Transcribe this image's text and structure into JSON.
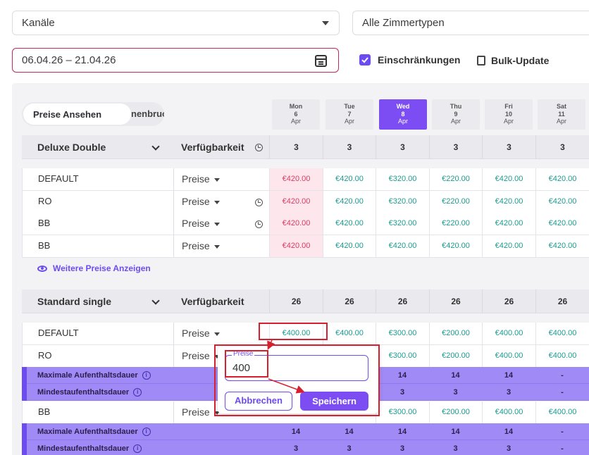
{
  "filters": {
    "channels_value": "Kanäle",
    "room_types_value": "Alle Zimmertypen",
    "date_range": "06.04.26 – 21.04.26",
    "restrictions_label": "Einschränkungen",
    "bulk_update_label": "Bulk-Update"
  },
  "view_toggle": {
    "active_label": "Preise Ansehen",
    "other_label_visible": "nenbruch"
  },
  "days": [
    {
      "name": "Mon",
      "num": "6",
      "month": "Apr",
      "active": false
    },
    {
      "name": "Tue",
      "num": "7",
      "month": "Apr",
      "active": false
    },
    {
      "name": "Wed",
      "num": "8",
      "month": "Apr",
      "active": true
    },
    {
      "name": "Thu",
      "num": "9",
      "month": "Apr",
      "active": false
    },
    {
      "name": "Fri",
      "num": "10",
      "month": "Apr",
      "active": false
    },
    {
      "name": "Sat",
      "num": "11",
      "month": "Apr",
      "active": false
    }
  ],
  "groups": [
    {
      "title": "Deluxe Double",
      "availability_label": "Verfügbarkeit",
      "availability": [
        "3",
        "3",
        "3",
        "3",
        "3",
        "3"
      ],
      "rows": [
        {
          "name": "DEFAULT",
          "selector": "Preise",
          "history": false,
          "prices": [
            "€420.00",
            "€420.00",
            "€320.00",
            "€220.00",
            "€420.00",
            "€420.00"
          ]
        },
        {
          "name": "RO",
          "selector": "Preise",
          "history": true,
          "prices": [
            "€420.00",
            "€420.00",
            "€320.00",
            "€220.00",
            "€420.00",
            "€420.00"
          ]
        },
        {
          "name": "BB",
          "selector": "Preise",
          "history": true,
          "prices": [
            "€420.00",
            "€420.00",
            "€320.00",
            "€220.00",
            "€420.00",
            "€420.00"
          ]
        },
        {
          "name": "BB",
          "selector": "Preise",
          "history": false,
          "prices": [
            "€420.00",
            "€420.00",
            "€420.00",
            "€420.00",
            "€420.00",
            "€420.00"
          ]
        }
      ],
      "more_link": "Weitere Preise Anzeigen"
    },
    {
      "title": "Standard single",
      "availability_label": "Verfügbarkeit",
      "availability": [
        "26",
        "26",
        "26",
        "26",
        "26",
        "26"
      ],
      "rows": [
        {
          "name": "DEFAULT",
          "selector": "Preise",
          "prices": [
            "€400.00",
            "€400.00",
            "€300.00",
            "€200.00",
            "€400.00",
            "€400.00"
          ]
        },
        {
          "name": "RO",
          "selector": "Preise",
          "prices": [
            "",
            "",
            "€300.00",
            "€200.00",
            "€400.00",
            "€400.00"
          ]
        },
        {
          "name": "BB",
          "selector": "Preise",
          "prices": [
            "",
            "",
            "€300.00",
            "€200.00",
            "€400.00",
            "€400.00"
          ]
        }
      ],
      "restrictions_ro": [
        {
          "label": "Maximale Aufenthaltsdauer",
          "values": [
            "",
            "",
            "14",
            "14",
            "14",
            "-"
          ]
        },
        {
          "label": "Mindestaufenthaltsdauer",
          "values": [
            "",
            "",
            "3",
            "3",
            "3",
            "-"
          ]
        }
      ],
      "restrictions_bb": [
        {
          "label": "Maximale Aufenthaltsdauer",
          "values": [
            "14",
            "14",
            "14",
            "14",
            "14",
            "-"
          ]
        },
        {
          "label": "Mindestaufenthaltsdauer",
          "values": [
            "3",
            "3",
            "3",
            "3",
            "3",
            "-"
          ]
        }
      ]
    }
  ],
  "popup": {
    "field_label": "Preise",
    "field_value": "400",
    "cancel_label": "Abbrechen",
    "save_label": "Speichern"
  },
  "colors": {
    "accent": "#7b4df2",
    "price_text": "#1a9b8e",
    "negative_price_text": "#d83a64",
    "negative_price_bg": "#fde7ec",
    "restriction_bg": "#a08af5",
    "annotation_red": "#d6202f"
  },
  "icons": {
    "channels_caret": "chevron-down-icon",
    "date_field": "calendar-icon",
    "restrictions": "checkbox-checked-icon",
    "bulk_update": "copy-icon",
    "group_toggle": "chevron-down-icon",
    "history": "history-icon",
    "more_link": "eye-icon",
    "restriction_info": "info-icon"
  }
}
